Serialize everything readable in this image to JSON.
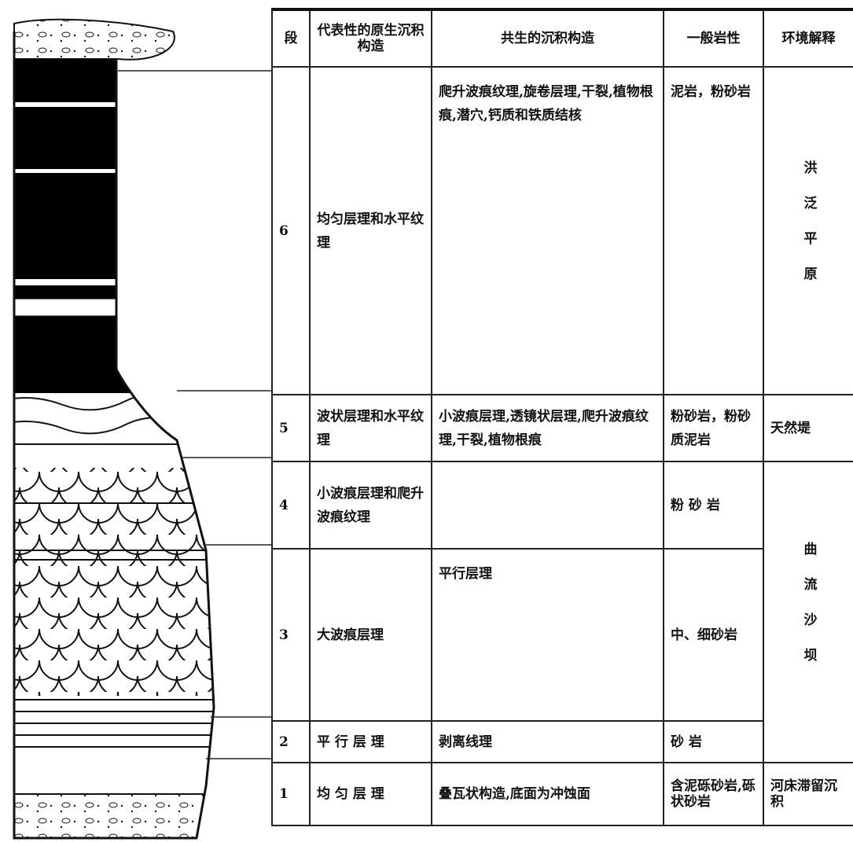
{
  "header": {
    "segment": "段",
    "primary": "代表性的原生沉积构造",
    "associated": "共生的沉积构造",
    "lithology": "一般岩性",
    "environment": "环境解释"
  },
  "rows": [
    {
      "segment": "6",
      "primary": "均匀层理和水平纹理",
      "associated": "爬升波痕纹理,旋卷层理,干裂,植物根痕,潜穴,钙质和铁质结核",
      "lithology": "泥岩，粉砂岩"
    },
    {
      "segment": "5",
      "primary": "波状层理和水平纹理",
      "associated": "小波痕层理,透镜状层理,爬升波痕纹理,干裂,植物根痕",
      "lithology": "粉砂岩，粉砂质泥岩"
    },
    {
      "segment": "4",
      "primary": "小波痕层理和爬升波痕纹理",
      "lithology": "粉 砂 岩"
    },
    {
      "segment": "3",
      "primary": "大波痕层理",
      "associated": "平行层理",
      "lithology": "中、细砂岩"
    },
    {
      "segment": "2",
      "primary": "平 行 层 理",
      "associated": "剥离线理",
      "lithology": "砂 岩"
    },
    {
      "segment": "1",
      "primary": "均 匀 层 理",
      "associated": "叠瓦状构造,底面为冲蚀面",
      "lithology": "含泥砾砂岩,砾状砂岩"
    }
  ],
  "environments": [
    "洪泛平原",
    "天然堤",
    "曲流沙坝",
    "河床滞留沉积"
  ]
}
